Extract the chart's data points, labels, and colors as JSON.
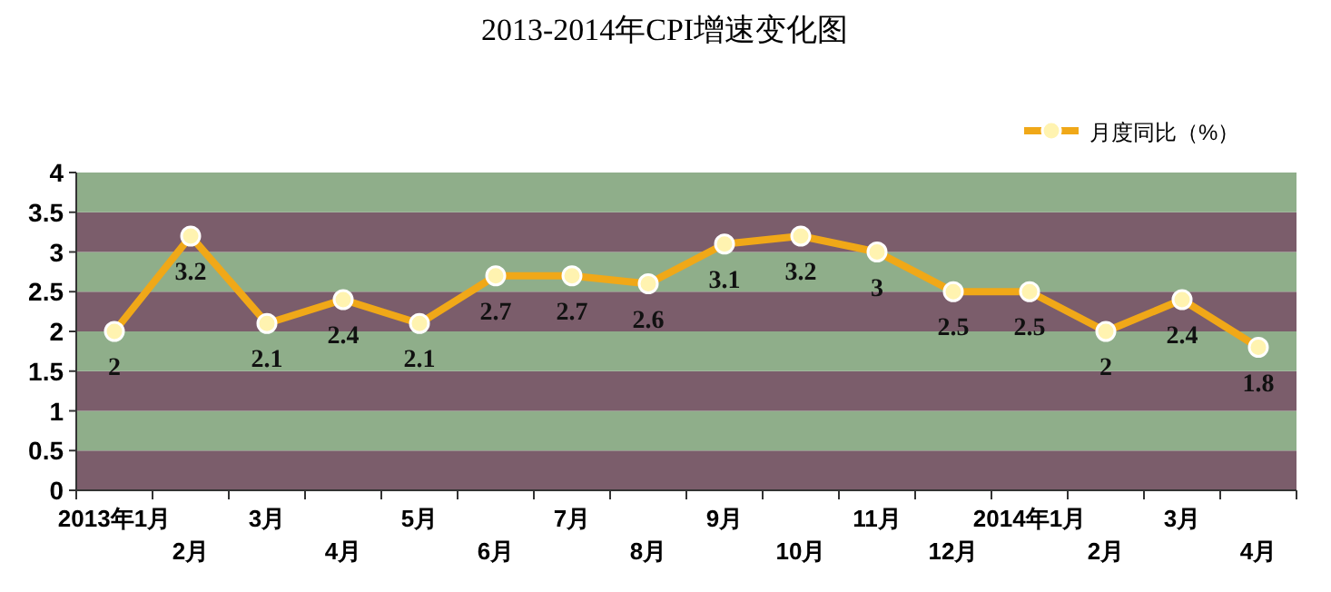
{
  "chart_data": {
    "type": "line",
    "title": "2013-2014年CPI增速变化图",
    "categories": [
      "2013年1月",
      "2月",
      "3月",
      "4月",
      "5月",
      "6月",
      "7月",
      "8月",
      "9月",
      "10月",
      "11月",
      "12月",
      "2014年1月",
      "2月",
      "3月",
      "4月"
    ],
    "series": [
      {
        "name": "月度同比（%）",
        "color": "#f0a818",
        "values": [
          2,
          3.2,
          2.1,
          2.4,
          2.1,
          2.7,
          2.7,
          2.6,
          3.1,
          3.2,
          3,
          2.5,
          2.5,
          2,
          2.4,
          1.8
        ]
      }
    ],
    "ylim": [
      0,
      4
    ],
    "yticks": [
      0,
      0.5,
      1,
      1.5,
      2,
      2.5,
      3,
      3.5,
      4
    ],
    "bands": [
      {
        "axis": "y",
        "from": 0,
        "to": 0.5,
        "color": "#7b5d6b"
      },
      {
        "axis": "y",
        "from": 0.5,
        "to": 1,
        "color": "#8fae8a"
      },
      {
        "axis": "y",
        "from": 1,
        "to": 1.5,
        "color": "#7b5d6b"
      },
      {
        "axis": "y",
        "from": 1.5,
        "to": 2,
        "color": "#8fae8a"
      },
      {
        "axis": "y",
        "from": 2,
        "to": 2.5,
        "color": "#7b5d6b"
      },
      {
        "axis": "y",
        "from": 2.5,
        "to": 3,
        "color": "#8fae8a"
      },
      {
        "axis": "y",
        "from": 3,
        "to": 3.5,
        "color": "#7b5d6b"
      },
      {
        "axis": "y",
        "from": 3.5,
        "to": 4,
        "color": "#8fae8a"
      }
    ],
    "data_labels": true,
    "legend": "top right",
    "marker": "circle",
    "line_style": "solid",
    "grid": false
  }
}
